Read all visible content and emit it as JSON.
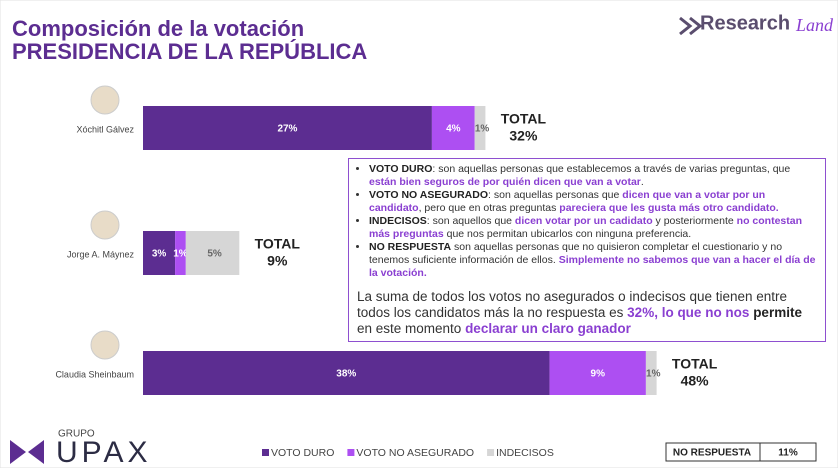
{
  "chart_data": {
    "type": "stacked_bar_horizontal",
    "title": "Composición de la votación",
    "subtitle": "PRESIDENCIA DE LA REPÚBLICA",
    "brand": "Research",
    "brand_script": "Land",
    "footer_group": "GRUPO",
    "footer_brand": "UPAX",
    "categories": [
      "Xóchitl Gálvez",
      "Jorge A. Máynez",
      "Claudia Sheinbaum"
    ],
    "series": [
      {
        "name": "VOTO DURO",
        "color": "#5c2d91",
        "values": [
          27,
          3,
          38
        ],
        "value_labels": [
          "27%",
          "3%",
          "38%"
        ]
      },
      {
        "name": "VOTO NO ASEGURADO",
        "color": "#ad4ff2",
        "values": [
          4,
          1,
          9
        ],
        "value_labels": [
          "4%",
          "1%",
          "9%"
        ]
      },
      {
        "name": "INDECISOS",
        "color": "#d6d6d6",
        "values": [
          1,
          5,
          1
        ],
        "value_labels": [
          "1%",
          "5%",
          "1%"
        ]
      }
    ],
    "total_label": "TOTAL",
    "totals": {
      "values": [
        32,
        9,
        48
      ],
      "value_labels": [
        "32%",
        "9%",
        "48%"
      ]
    },
    "no_response": {
      "name": "NO RESPUESTA",
      "value": 11,
      "value_label": "11%"
    },
    "notes": [
      [
        "VOTO DURO",
        ": son aquellas personas que establecemos a través de varias preguntas, que ",
        "están bien seguros de por quién dicen que van a votar",
        "."
      ],
      [
        "VOTO NO ASEGURADO",
        ": son aquellas personas que ",
        "dicen que van a votar por un candidato",
        ", pero que en otras preguntas ",
        "pareciera que les gusta más otro candidato."
      ],
      [
        "INDECISOS",
        ": son aquellos que ",
        "dicen votar por un cadidato",
        " y posteriormente ",
        "no contestan más preguntas",
        " que nos permitan ubicarlos con ninguna preferencia."
      ],
      [
        "NO RESPUESTA",
        " son aquellas personas que no quisieron completar el cuestionario y no tenemos suficiente información de ellos. ",
        "Simplemente no sabemos que van a hacer el día de la votación."
      ]
    ],
    "summary": [
      "La suma de todos los votos no asegurados o indecisos que tienen entre todos los candidatos más la no respuesta es ",
      "32%, lo que no nos",
      " permite",
      " en este momento ",
      "declarar un claro ganador"
    ]
  }
}
